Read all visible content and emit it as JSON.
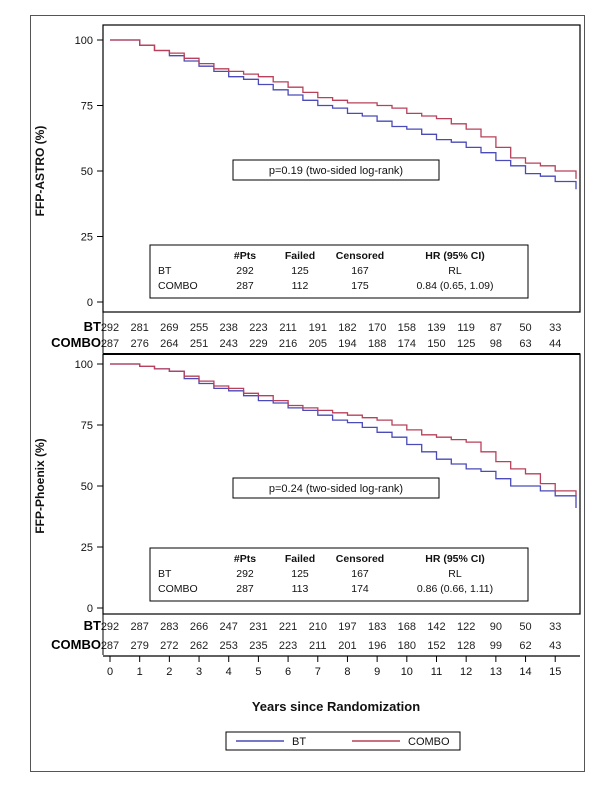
{
  "chart_data": {
    "type": "line",
    "xlabel": "Years since Randomization",
    "x_ticks": [
      0,
      1,
      2,
      3,
      4,
      5,
      6,
      7,
      8,
      9,
      10,
      11,
      12,
      13,
      14,
      15
    ],
    "xlim": [
      0,
      15.7
    ],
    "legend": {
      "placement": "bottom",
      "entries": [
        {
          "name": "BT",
          "color": "#4a4ab8"
        },
        {
          "name": "COMBO",
          "color": "#b8405a"
        }
      ]
    },
    "panels": [
      {
        "id": "astro",
        "ylabel": "FFP-ASTRO (%)",
        "ylim": [
          0,
          100
        ],
        "y_ticks": [
          "0",
          "25",
          "50",
          "75",
          "100"
        ],
        "pvalue_text": "p=0.19 (two-sided log-rank)",
        "series": [
          {
            "name": "BT",
            "color": "#4a4ab8",
            "points": [
              [
                0,
                100
              ],
              [
                0.5,
                100
              ],
              [
                1,
                98
              ],
              [
                1.5,
                96
              ],
              [
                2,
                94
              ],
              [
                2.5,
                92
              ],
              [
                3,
                90
              ],
              [
                3.5,
                88
              ],
              [
                4,
                86
              ],
              [
                4.5,
                85
              ],
              [
                5,
                83
              ],
              [
                5.5,
                81
              ],
              [
                6,
                79
              ],
              [
                6.5,
                77
              ],
              [
                7,
                75
              ],
              [
                7.5,
                74
              ],
              [
                8,
                72
              ],
              [
                8.5,
                71
              ],
              [
                9,
                69
              ],
              [
                9.5,
                67
              ],
              [
                10,
                66
              ],
              [
                10.5,
                64
              ],
              [
                11,
                62
              ],
              [
                11.5,
                61
              ],
              [
                12,
                59
              ],
              [
                12.5,
                57
              ],
              [
                13,
                54
              ],
              [
                13.5,
                52
              ],
              [
                14,
                49
              ],
              [
                14.5,
                48
              ],
              [
                15,
                46
              ],
              [
                15.7,
                43
              ]
            ]
          },
          {
            "name": "COMBO",
            "color": "#b8405a",
            "points": [
              [
                0,
                100
              ],
              [
                0.5,
                100
              ],
              [
                1,
                98
              ],
              [
                1.5,
                96
              ],
              [
                2,
                95
              ],
              [
                2.5,
                93
              ],
              [
                3,
                91
              ],
              [
                3.5,
                89
              ],
              [
                4,
                88
              ],
              [
                4.5,
                87
              ],
              [
                5,
                86
              ],
              [
                5.5,
                84
              ],
              [
                6,
                82
              ],
              [
                6.5,
                80
              ],
              [
                7,
                78
              ],
              [
                7.5,
                77
              ],
              [
                8,
                76
              ],
              [
                8.5,
                76
              ],
              [
                9,
                75
              ],
              [
                9.5,
                74
              ],
              [
                10,
                72
              ],
              [
                10.5,
                71
              ],
              [
                11,
                70
              ],
              [
                11.5,
                68
              ],
              [
                12,
                66
              ],
              [
                12.5,
                63
              ],
              [
                13,
                59
              ],
              [
                13.5,
                55
              ],
              [
                14,
                53
              ],
              [
                14.5,
                52
              ],
              [
                15,
                50
              ],
              [
                15.7,
                47
              ]
            ]
          }
        ],
        "hr_table": {
          "headers": [
            "",
            "#Pts",
            "Failed",
            "Censored",
            "HR (95% CI)"
          ],
          "rows": [
            [
              "BT",
              "292",
              "125",
              "167",
              "RL"
            ],
            [
              "COMBO",
              "287",
              "112",
              "175",
              "0.84 (0.65, 1.09)"
            ]
          ]
        },
        "at_risk": [
          {
            "label": "BT",
            "values": [
              "292",
              "281",
              "269",
              "255",
              "238",
              "223",
              "211",
              "191",
              "182",
              "170",
              "158",
              "139",
              "119",
              "87",
              "50",
              "33"
            ]
          },
          {
            "label": "COMBO",
            "values": [
              "287",
              "276",
              "264",
              "251",
              "243",
              "229",
              "216",
              "205",
              "194",
              "188",
              "174",
              "150",
              "125",
              "98",
              "63",
              "44"
            ]
          }
        ]
      },
      {
        "id": "phoenix",
        "ylabel": "FFP-Phoenix (%)",
        "ylim": [
          0,
          100
        ],
        "y_ticks": [
          "0",
          "25",
          "50",
          "75",
          "100"
        ],
        "pvalue_text": "p=0.24 (two-sided log-rank)",
        "series": [
          {
            "name": "BT",
            "color": "#4a4ab8",
            "points": [
              [
                0,
                100
              ],
              [
                0.5,
                100
              ],
              [
                1,
                99
              ],
              [
                1.5,
                98
              ],
              [
                2,
                97
              ],
              [
                2.5,
                94
              ],
              [
                3,
                92
              ],
              [
                3.5,
                90
              ],
              [
                4,
                89
              ],
              [
                4.5,
                87
              ],
              [
                5,
                85
              ],
              [
                5.5,
                84
              ],
              [
                6,
                82
              ],
              [
                6.5,
                81
              ],
              [
                7,
                79
              ],
              [
                7.5,
                77
              ],
              [
                8,
                76
              ],
              [
                8.5,
                74
              ],
              [
                9,
                72
              ],
              [
                9.5,
                70
              ],
              [
                10,
                67
              ],
              [
                10.5,
                64
              ],
              [
                11,
                61
              ],
              [
                11.5,
                59
              ],
              [
                12,
                57
              ],
              [
                12.5,
                56
              ],
              [
                13,
                53
              ],
              [
                13.5,
                50
              ],
              [
                14,
                50
              ],
              [
                14.5,
                48
              ],
              [
                15,
                46
              ],
              [
                15.7,
                41
              ]
            ]
          },
          {
            "name": "COMBO",
            "color": "#b8405a",
            "points": [
              [
                0,
                100
              ],
              [
                0.5,
                100
              ],
              [
                1,
                99
              ],
              [
                1.5,
                98
              ],
              [
                2,
                97
              ],
              [
                2.5,
                95
              ],
              [
                3,
                93
              ],
              [
                3.5,
                91
              ],
              [
                4,
                90
              ],
              [
                4.5,
                88
              ],
              [
                5,
                87
              ],
              [
                5.5,
                85
              ],
              [
                6,
                83
              ],
              [
                6.5,
                82
              ],
              [
                7,
                81
              ],
              [
                7.5,
                80
              ],
              [
                8,
                79
              ],
              [
                8.5,
                78
              ],
              [
                9,
                77
              ],
              [
                9.5,
                75
              ],
              [
                10,
                73
              ],
              [
                10.5,
                71
              ],
              [
                11,
                70
              ],
              [
                11.5,
                69
              ],
              [
                12,
                68
              ],
              [
                12.5,
                64
              ],
              [
                13,
                60
              ],
              [
                13.5,
                57
              ],
              [
                14,
                55
              ],
              [
                14.5,
                51
              ],
              [
                15,
                48
              ],
              [
                15.7,
                46
              ]
            ]
          }
        ],
        "hr_table": {
          "headers": [
            "",
            "#Pts",
            "Failed",
            "Censored",
            "HR (95% CI)"
          ],
          "rows": [
            [
              "BT",
              "292",
              "125",
              "167",
              "RL"
            ],
            [
              "COMBO",
              "287",
              "113",
              "174",
              "0.86 (0.66, 1.11)"
            ]
          ]
        },
        "at_risk": [
          {
            "label": "BT",
            "values": [
              "292",
              "287",
              "283",
              "266",
              "247",
              "231",
              "221",
              "210",
              "197",
              "183",
              "168",
              "142",
              "122",
              "90",
              "50",
              "33"
            ]
          },
          {
            "label": "COMBO",
            "values": [
              "287",
              "279",
              "272",
              "262",
              "253",
              "235",
              "223",
              "211",
              "201",
              "196",
              "180",
              "152",
              "128",
              "99",
              "62",
              "43"
            ]
          }
        ]
      }
    ]
  }
}
